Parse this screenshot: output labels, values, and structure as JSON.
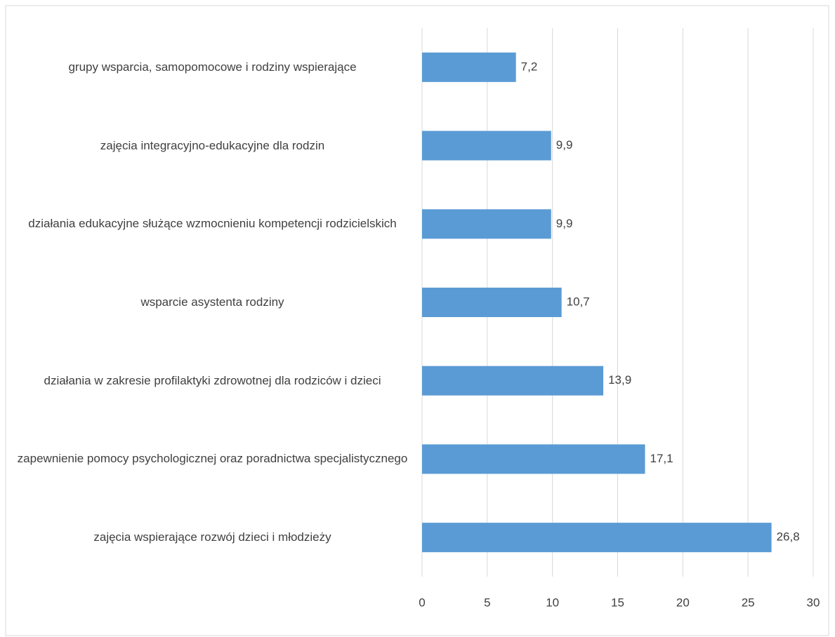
{
  "chart_data": {
    "type": "barh",
    "categories": [
      "grupy wsparcia, samopomocowe i rodziny wspierające",
      "zajęcia integracyjno-edukacyjne dla rodzin",
      "działania edukacyjne służące wzmocnieniu kompetencji rodzicielskich",
      "wsparcie asystenta rodziny",
      "działania w zakresie profilaktyki zdrowotnej dla rodziców i dzieci",
      "zapewnienie pomocy psychologicznej oraz poradnictwa specjalistycznego",
      "zajęcia wspierające rozwój dzieci i młodzieży"
    ],
    "values": [
      7.2,
      9.9,
      9.9,
      10.7,
      13.9,
      17.1,
      26.8
    ],
    "value_labels": [
      "7,2",
      "9,9",
      "9,9",
      "10,7",
      "13,9",
      "17,1",
      "26,8"
    ],
    "color": "#5b9bd5",
    "xlim": [
      0,
      30
    ],
    "xticks": [
      0,
      5,
      10,
      15,
      20,
      25,
      30
    ],
    "grid": true
  }
}
